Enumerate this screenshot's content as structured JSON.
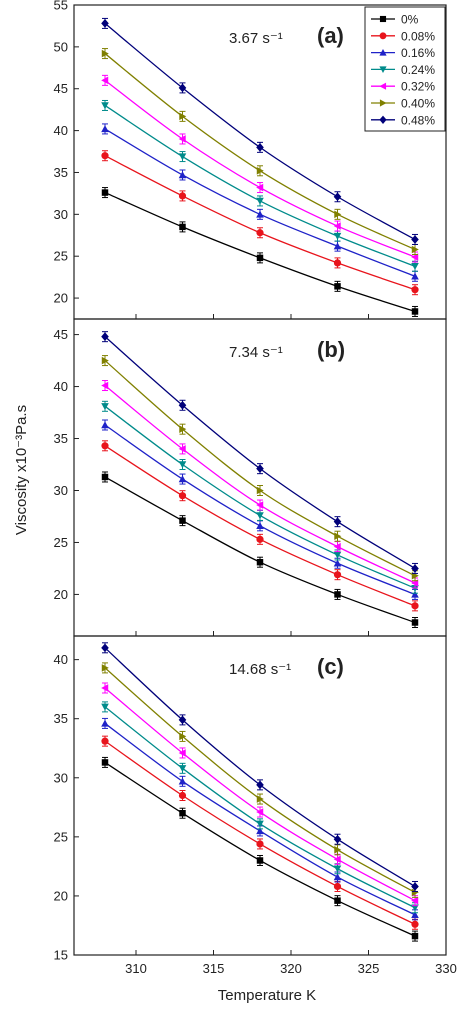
{
  "figure": {
    "ylabel": "Viscosity x10⁻³Pa.s",
    "xlabel": "Temperature K"
  },
  "legend": {
    "entries": [
      {
        "label": "0%",
        "color": "#000000",
        "marker": "square"
      },
      {
        "label": "0.08%",
        "color": "#e8141c",
        "marker": "circle"
      },
      {
        "label": "0.16%",
        "color": "#1f22c8",
        "marker": "triangle-up"
      },
      {
        "label": "0.24%",
        "color": "#008b8b",
        "marker": "triangle-down"
      },
      {
        "label": "0.32%",
        "color": "#ff00ff",
        "marker": "triangle-left"
      },
      {
        "label": "0.40%",
        "color": "#808000",
        "marker": "triangle-right"
      },
      {
        "label": "0.48%",
        "color": "#00007a",
        "marker": "diamond"
      }
    ]
  },
  "chart_data": [
    {
      "type": "line",
      "panel": "(a)",
      "shear_rate": "3.67 s⁻¹",
      "x": [
        308,
        313,
        318,
        323,
        328
      ],
      "xlim": [
        306,
        330
      ],
      "ylim": [
        17.5,
        55
      ],
      "yticks": [
        20,
        25,
        30,
        35,
        40,
        45,
        50,
        55
      ],
      "grid": false,
      "legend_position": "top-right",
      "series": [
        {
          "name": "0%",
          "values": [
            32.6,
            28.5,
            24.8,
            21.4,
            18.4
          ]
        },
        {
          "name": "0.08%",
          "values": [
            37.0,
            32.2,
            27.8,
            24.2,
            21.0
          ]
        },
        {
          "name": "0.16%",
          "values": [
            40.2,
            34.7,
            30.0,
            26.2,
            22.6
          ]
        },
        {
          "name": "0.24%",
          "values": [
            43.0,
            36.9,
            31.6,
            27.4,
            23.8
          ]
        },
        {
          "name": "0.32%",
          "values": [
            46.0,
            39.0,
            33.2,
            28.6,
            24.9
          ]
        },
        {
          "name": "0.40%",
          "values": [
            49.2,
            41.7,
            35.2,
            30.0,
            25.8
          ]
        },
        {
          "name": "0.48%",
          "values": [
            52.8,
            45.1,
            38.0,
            32.1,
            27.0
          ]
        }
      ]
    },
    {
      "type": "line",
      "panel": "(b)",
      "shear_rate": "7.34 s⁻¹",
      "x": [
        308,
        313,
        318,
        323,
        328
      ],
      "xlim": [
        306,
        330
      ],
      "ylim": [
        16,
        46.5
      ],
      "yticks": [
        20,
        25,
        30,
        35,
        40,
        45
      ],
      "grid": false,
      "series": [
        {
          "name": "0%",
          "values": [
            31.3,
            27.1,
            23.1,
            20.0,
            17.3
          ]
        },
        {
          "name": "0.08%",
          "values": [
            34.3,
            29.5,
            25.3,
            21.9,
            18.9
          ]
        },
        {
          "name": "0.16%",
          "values": [
            36.3,
            31.1,
            26.6,
            23.0,
            20.0
          ]
        },
        {
          "name": "0.24%",
          "values": [
            38.1,
            32.5,
            27.6,
            23.8,
            20.6
          ]
        },
        {
          "name": "0.32%",
          "values": [
            40.1,
            34.0,
            28.6,
            24.6,
            21.1
          ]
        },
        {
          "name": "0.40%",
          "values": [
            42.5,
            35.9,
            30.0,
            25.6,
            21.8
          ]
        },
        {
          "name": "0.48%",
          "values": [
            44.8,
            38.2,
            32.1,
            27.0,
            22.5
          ]
        }
      ]
    },
    {
      "type": "line",
      "panel": "(c)",
      "shear_rate": "14.68 s⁻¹",
      "x": [
        308,
        313,
        318,
        323,
        328
      ],
      "xlim": [
        306,
        330
      ],
      "xticks": [
        310,
        315,
        320,
        325,
        330
      ],
      "ylim": [
        15,
        42
      ],
      "yticks": [
        15,
        20,
        25,
        30,
        35,
        40
      ],
      "grid": false,
      "series": [
        {
          "name": "0%",
          "values": [
            31.3,
            27.0,
            23.0,
            19.6,
            16.6
          ]
        },
        {
          "name": "0.08%",
          "values": [
            33.1,
            28.5,
            24.4,
            20.8,
            17.6
          ]
        },
        {
          "name": "0.16%",
          "values": [
            34.6,
            29.7,
            25.5,
            21.6,
            18.4
          ]
        },
        {
          "name": "0.24%",
          "values": [
            36.0,
            30.8,
            26.1,
            22.3,
            19.0
          ]
        },
        {
          "name": "0.32%",
          "values": [
            37.6,
            32.1,
            27.1,
            23.1,
            19.6
          ]
        },
        {
          "name": "0.40%",
          "values": [
            39.3,
            33.5,
            28.2,
            23.9,
            20.3
          ]
        },
        {
          "name": "0.48%",
          "values": [
            41.0,
            34.9,
            29.4,
            24.8,
            20.8
          ]
        }
      ]
    }
  ]
}
